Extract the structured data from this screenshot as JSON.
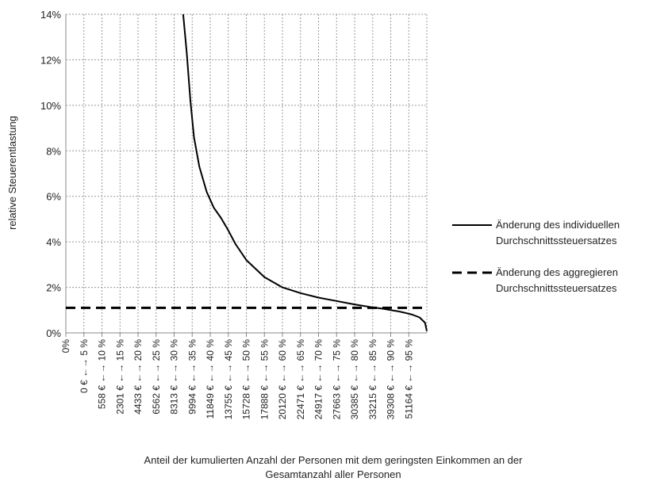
{
  "chart_data": {
    "type": "line",
    "title": "",
    "xlabel": "Anteil der  kumulierten Anzahl der Personen mit dem geringsten Einkommen an der\nGesamtanzahl aller Personen",
    "ylabel": "relative Steuerentlastung",
    "ylim": [
      0,
      14
    ],
    "y_ticks": [
      "0%",
      "2%",
      "4%",
      "6%",
      "8%",
      "10%",
      "12%",
      "14%"
    ],
    "y_tick_values": [
      0,
      2,
      4,
      6,
      8,
      10,
      12,
      14
    ],
    "xlim": [
      0,
      100
    ],
    "x_tick_labels": [
      "0%",
      "0 € ←→ 5 %",
      "558 € ←→ 10 %",
      "2301 € ←→ 15 %",
      "4433 € ←→ 20 %",
      "6562 € ←→ 25 %",
      "8313 € ←→ 30 %",
      "9994 € ←→ 35 %",
      "11849 € ←→ 40 %",
      "13755 € ←→ 45 %",
      "15728 € ←→ 50 %",
      "17888 € ←→ 55 %",
      "20120 € ←→ 60 %",
      "22471 € ←→ 65 %",
      "24917 € ←→ 70 %",
      "27663 € ←→ 75 %",
      "30385 € ←→ 80 %",
      "33215 € ←→ 85 %",
      "39308 € ←→ 90 %",
      "51164 € ←→ 95 %"
    ],
    "x_tick_values": [
      0,
      5,
      10,
      15,
      20,
      25,
      30,
      35,
      40,
      45,
      50,
      55,
      60,
      65,
      70,
      75,
      80,
      85,
      90,
      95
    ],
    "grid": true,
    "grid_style": "dotted",
    "legend_position": "right",
    "series": [
      {
        "name": "Änderung des individuellen Durchschnittssteuersatzes",
        "style": "solid",
        "color": "#000000",
        "x": [
          32.5,
          33.5,
          34.5,
          35.5,
          37,
          39,
          41,
          43,
          45,
          47,
          50,
          55,
          60,
          65,
          70,
          75,
          80,
          85,
          88,
          90,
          92,
          94,
          96,
          98,
          99.5,
          100
        ],
        "y": [
          14,
          12.3,
          10.2,
          8.6,
          7.3,
          6.2,
          5.5,
          5.05,
          4.5,
          3.9,
          3.2,
          2.45,
          2.0,
          1.75,
          1.55,
          1.4,
          1.25,
          1.12,
          1.06,
          1.0,
          0.95,
          0.88,
          0.8,
          0.68,
          0.45,
          0.08
        ]
      },
      {
        "name": "Änderung des aggregieren Durchschnittssteuersatzes",
        "style": "dashed",
        "color": "#000000",
        "x": [
          0,
          100
        ],
        "y": [
          1.1,
          1.1
        ]
      }
    ]
  }
}
